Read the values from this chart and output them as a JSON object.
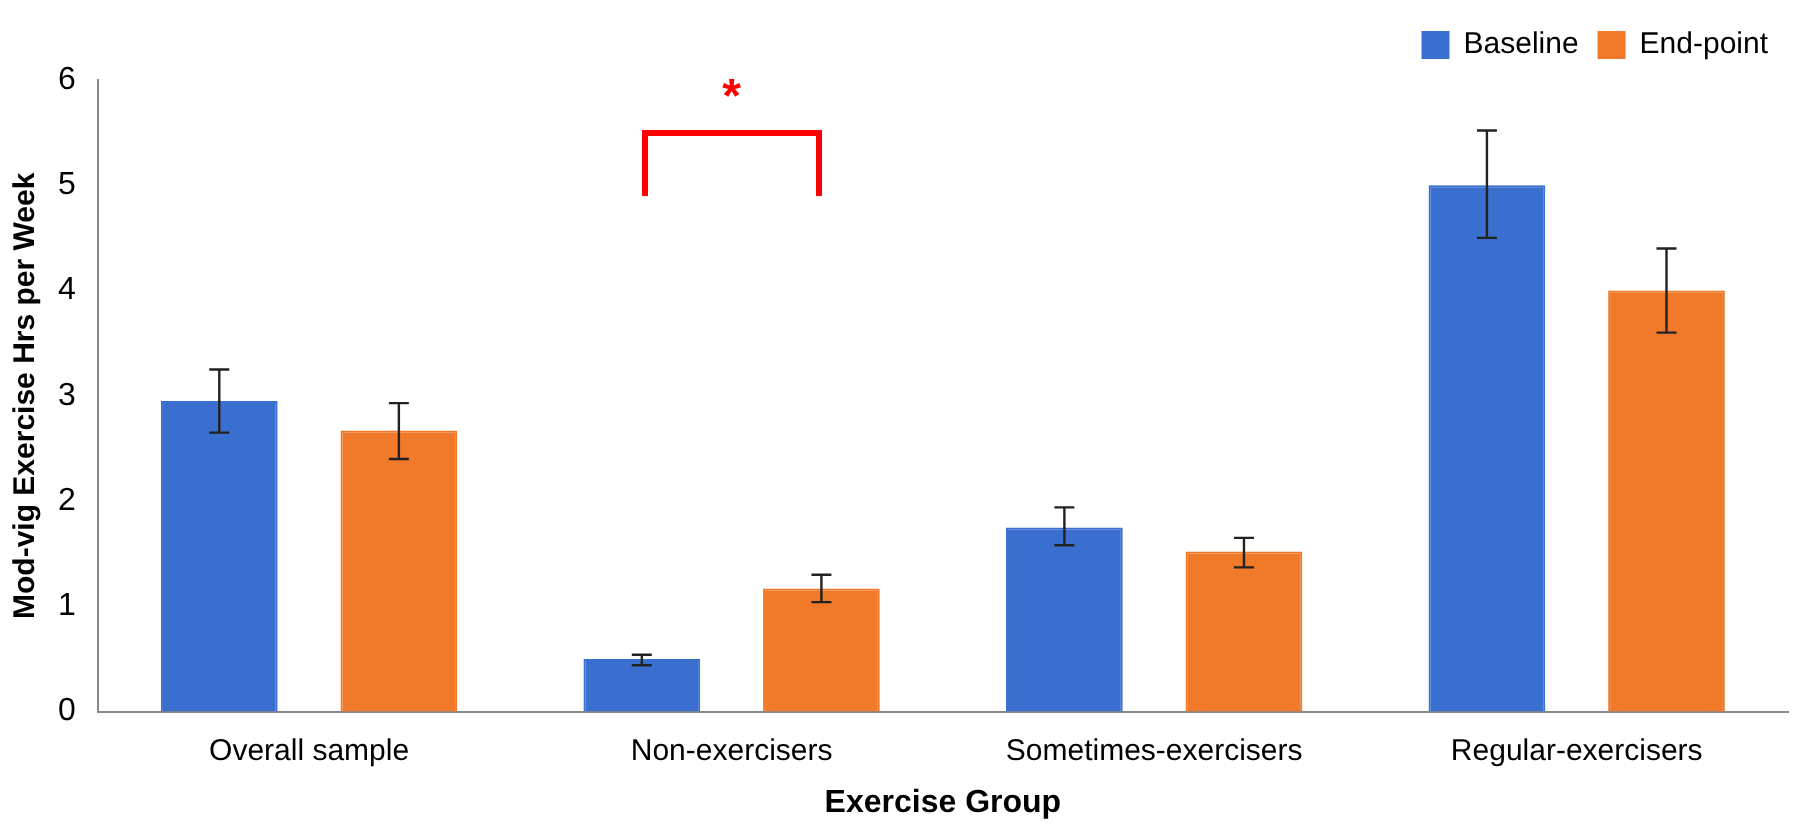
{
  "chart_data": {
    "type": "bar",
    "xlabel": "Exercise Group",
    "ylabel": "Mod-vig Exercise Hrs per Week",
    "categories": [
      "Overall sample",
      "Non-exercisers",
      "Sometimes-exercisers",
      "Regular-exercisers"
    ],
    "series": [
      {
        "name": "Baseline",
        "color": "#3a6fd0",
        "values": [
          2.95,
          0.5,
          1.75,
          5.0
        ],
        "errors": [
          [
            2.65,
            3.25
          ],
          [
            0.44,
            0.54
          ],
          [
            1.58,
            1.94
          ],
          [
            4.5,
            5.52
          ]
        ]
      },
      {
        "name": "End-point",
        "color": "#f07a2a",
        "values": [
          2.67,
          1.17,
          1.52,
          4.0
        ],
        "errors": [
          [
            2.4,
            2.93
          ],
          [
            1.04,
            1.3
          ],
          [
            1.37,
            1.65
          ],
          [
            3.6,
            4.4
          ]
        ]
      }
    ],
    "ylim": [
      0,
      6
    ],
    "yticks": [
      0,
      1,
      2,
      3,
      4,
      5,
      6
    ],
    "grid": false,
    "legend": "top right",
    "annotations": [
      "*"
    ]
  }
}
